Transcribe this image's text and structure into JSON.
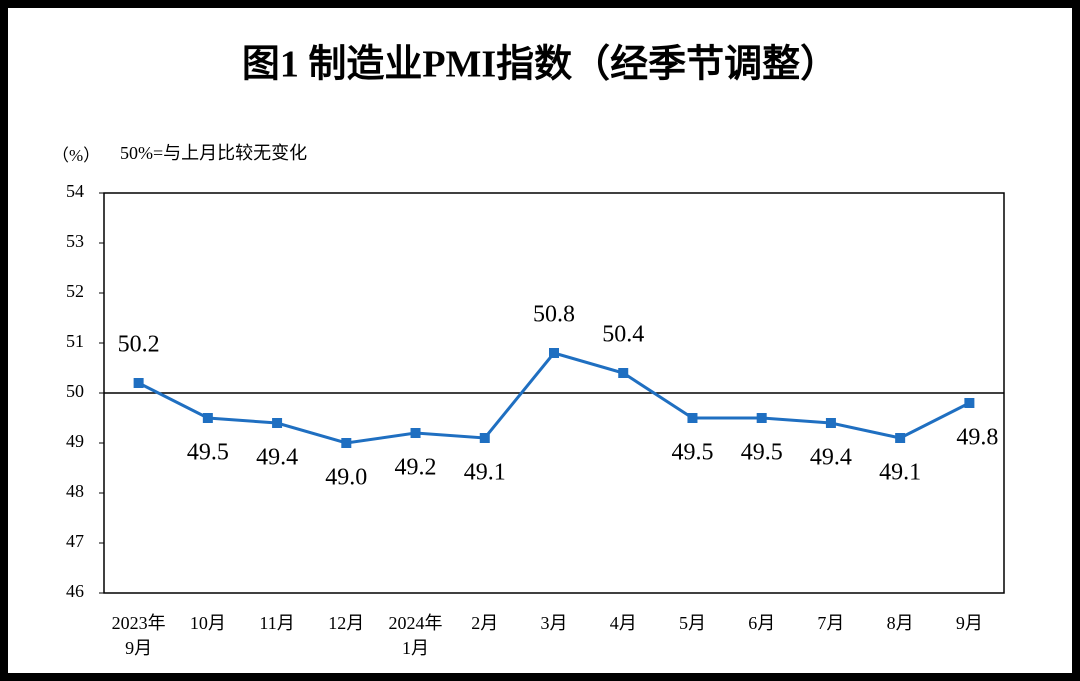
{
  "chart_data": {
    "type": "line",
    "title": "图1  制造业PMI指数（经季节调整）",
    "y_label": "（%）",
    "annotation": "50%=与上月比较无变化",
    "categories": [
      "2023年\n9月",
      "10月",
      "11月",
      "12月",
      "2024年\n1月",
      "2月",
      "3月",
      "4月",
      "5月",
      "6月",
      "7月",
      "8月",
      "9月"
    ],
    "series": [
      {
        "name": "制造业PMI",
        "color": "#1f6fc1",
        "values": [
          50.2,
          49.5,
          49.4,
          49.0,
          49.2,
          49.1,
          50.8,
          50.4,
          49.5,
          49.5,
          49.4,
          49.1,
          49.8
        ],
        "value_labels": [
          "50.2",
          "49.5",
          "49.4",
          "49.0",
          "49.2",
          "49.1",
          "50.8",
          "50.4",
          "49.5",
          "49.5",
          "49.4",
          "49.1",
          "49.8"
        ]
      }
    ],
    "reference_line": 50,
    "ylim": [
      46,
      54
    ],
    "yticks": [
      46,
      47,
      48,
      49,
      50,
      51,
      52,
      53,
      54
    ],
    "grid": false
  }
}
